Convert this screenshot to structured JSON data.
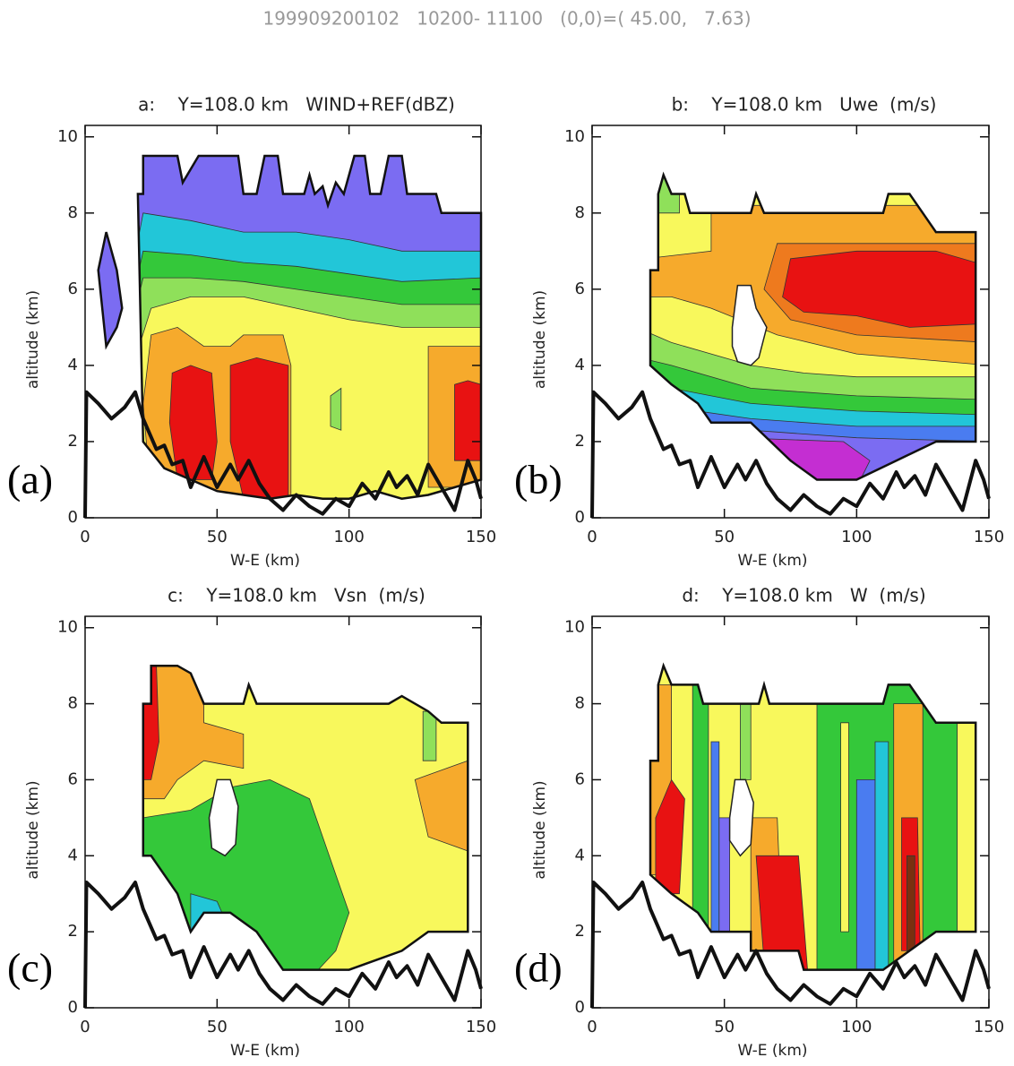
{
  "title": "199909200102   10200- 11100   (0,0)=( 45.00,   7.63)",
  "chart_data": [
    {
      "type": "contour",
      "panel_label": "(a)",
      "title": "a:    Y=108.0 km   WIND+REF(dBZ)",
      "x_label": "W-E (km)",
      "y_label": "altitude (km)",
      "xlim": [
        0,
        150
      ],
      "ylim": [
        0,
        10.3
      ],
      "xticks": [
        0,
        50,
        100,
        150
      ],
      "yticks": [
        0,
        2,
        4,
        6,
        8,
        10
      ],
      "x": [
        0,
        0.5,
        5,
        10,
        15,
        19,
        22,
        27,
        30,
        33,
        37,
        40,
        45,
        50,
        55,
        58,
        62,
        66,
        70,
        75,
        80,
        85,
        90,
        95,
        100,
        105,
        110,
        115,
        118,
        122,
        126,
        130,
        135,
        140,
        145,
        148,
        150
      ],
      "values": [
        0,
        3.3,
        3.0,
        2.6,
        2.9,
        3.3,
        2.6,
        1.8,
        1.9,
        1.4,
        1.5,
        0.8,
        1.6,
        0.8,
        1.4,
        1.0,
        1.5,
        0.9,
        0.5,
        0.2,
        0.6,
        0.3,
        0.1,
        0.5,
        0.3,
        0.9,
        0.5,
        1.2,
        0.8,
        1.1,
        0.6,
        1.4,
        0.8,
        0.2,
        1.5,
        1.0,
        0.5
      ]
    },
    {
      "type": "contour",
      "panel_label": "(b)",
      "title": "b:    Y=108.0 km   Uwe  (m/s)",
      "x_label": "W-E (km)",
      "y_label": "altitude (km)",
      "xlim": [
        0,
        150
      ],
      "ylim": [
        0,
        10.3
      ],
      "xticks": [
        0,
        50,
        100,
        150
      ],
      "yticks": [
        0,
        2,
        4,
        6,
        8,
        10
      ],
      "x": [
        0,
        0.5,
        5,
        10,
        15,
        19,
        22,
        27,
        30,
        33,
        37,
        40,
        45,
        50,
        55,
        58,
        62,
        66,
        70,
        75,
        80,
        85,
        90,
        95,
        100,
        105,
        110,
        115,
        118,
        122,
        126,
        130,
        135,
        140,
        145,
        148,
        150
      ],
      "values": [
        0,
        3.3,
        3.0,
        2.6,
        2.9,
        3.3,
        2.6,
        1.8,
        1.9,
        1.4,
        1.5,
        0.8,
        1.6,
        0.8,
        1.4,
        1.0,
        1.5,
        0.9,
        0.5,
        0.2,
        0.6,
        0.3,
        0.1,
        0.5,
        0.3,
        0.9,
        0.5,
        1.2,
        0.8,
        1.1,
        0.6,
        1.4,
        0.8,
        0.2,
        1.5,
        1.0,
        0.5
      ]
    },
    {
      "type": "contour",
      "panel_label": "(c)",
      "title": "c:    Y=108.0 km   Vsn  (m/s)",
      "x_label": "W-E (km)",
      "y_label": "altitude (km)",
      "xlim": [
        0,
        150
      ],
      "ylim": [
        0,
        10.3
      ],
      "xticks": [
        0,
        50,
        100,
        150
      ],
      "yticks": [
        0,
        2,
        4,
        6,
        8,
        10
      ],
      "x": [
        0,
        0.5,
        5,
        10,
        15,
        19,
        22,
        27,
        30,
        33,
        37,
        40,
        45,
        50,
        55,
        58,
        62,
        66,
        70,
        75,
        80,
        85,
        90,
        95,
        100,
        105,
        110,
        115,
        118,
        122,
        126,
        130,
        135,
        140,
        145,
        148,
        150
      ],
      "values": [
        0,
        3.3,
        3.0,
        2.6,
        2.9,
        3.3,
        2.6,
        1.8,
        1.9,
        1.4,
        1.5,
        0.8,
        1.6,
        0.8,
        1.4,
        1.0,
        1.5,
        0.9,
        0.5,
        0.2,
        0.6,
        0.3,
        0.1,
        0.5,
        0.3,
        0.9,
        0.5,
        1.2,
        0.8,
        1.1,
        0.6,
        1.4,
        0.8,
        0.2,
        1.5,
        1.0,
        0.5
      ]
    },
    {
      "type": "contour",
      "panel_label": "(d)",
      "title": "d:    Y=108.0 km   W  (m/s)",
      "x_label": "W-E (km)",
      "y_label": "altitude (km)",
      "xlim": [
        0,
        150
      ],
      "ylim": [
        0,
        10.3
      ],
      "xticks": [
        0,
        50,
        100,
        150
      ],
      "yticks": [
        0,
        2,
        4,
        6,
        8,
        10
      ],
      "x": [
        0,
        0.5,
        5,
        10,
        15,
        19,
        22,
        27,
        30,
        33,
        37,
        40,
        45,
        50,
        55,
        58,
        62,
        66,
        70,
        75,
        80,
        85,
        90,
        95,
        100,
        105,
        110,
        115,
        118,
        122,
        126,
        130,
        135,
        140,
        145,
        148,
        150
      ],
      "values": [
        0,
        3.3,
        3.0,
        2.6,
        2.9,
        3.3,
        2.6,
        1.8,
        1.9,
        1.4,
        1.5,
        0.8,
        1.6,
        0.8,
        1.4,
        1.0,
        1.5,
        0.9,
        0.5,
        0.2,
        0.6,
        0.3,
        0.1,
        0.5,
        0.3,
        0.9,
        0.5,
        1.2,
        0.8,
        1.1,
        0.6,
        1.4,
        0.8,
        0.2,
        1.5,
        1.0,
        0.5
      ]
    }
  ]
}
